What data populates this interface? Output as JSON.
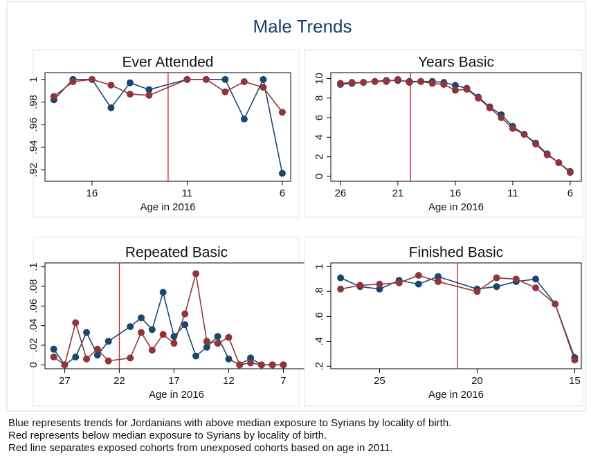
{
  "title": "Male Trends",
  "notes": [
    "Blue represents trends for Jordanians with above median exposure to Syrians by locality of birth.",
    "Red represents below median exposure to Syrians by locality of birth.",
    "Red line separates exposed cohorts from unexposed cohorts based on age in 2011."
  ],
  "chart_data": [
    {
      "type": "line",
      "title": "Ever Attended",
      "xlabel": "Age in 2016",
      "x": [
        18,
        17,
        16,
        15,
        14,
        13,
        11,
        10,
        9,
        8,
        7,
        6
      ],
      "series": [
        {
          "color": "#1a476f",
          "values": [
            0.982,
            1.0,
            1.0,
            0.975,
            0.997,
            0.991,
            1.0,
            1.0,
            1.0,
            0.965,
            1.0,
            0.917
          ]
        },
        {
          "color": "#90353b",
          "values": [
            0.985,
            0.998,
            1.0,
            0.995,
            0.987,
            0.986,
            1.0,
            1.0,
            0.989,
            0.998,
            0.993,
            0.971
          ]
        }
      ],
      "vline": {
        "value": 12,
        "color": "#c1272d"
      },
      "xlim": [
        18.47,
        5.56
      ],
      "xticks": [
        16,
        11,
        6
      ],
      "ylim": [
        0.91,
        1.006
      ],
      "yticks": [
        {
          "value": 0.92,
          "label": ".92"
        },
        {
          "value": 0.94,
          "label": ".94"
        },
        {
          "value": 0.96,
          "label": ".96"
        },
        {
          "value": 0.98,
          "label": ".98"
        },
        1
      ]
    },
    {
      "type": "line",
      "title": "Years Basic",
      "xlabel": "Age in 2016",
      "x": [
        26,
        25,
        24,
        23,
        22,
        21,
        20,
        19,
        18,
        17,
        16,
        15,
        14,
        13,
        12,
        11,
        10,
        9,
        8,
        7,
        6
      ],
      "series": [
        {
          "color": "#1a476f",
          "values": [
            9.4,
            9.5,
            9.6,
            9.7,
            9.8,
            9.8,
            9.7,
            9.7,
            9.7,
            9.6,
            9.3,
            9.0,
            8.1,
            7.1,
            6.3,
            5.1,
            4.3,
            3.4,
            2.3,
            1.4,
            0.5
          ]
        },
        {
          "color": "#90353b",
          "values": [
            9.5,
            9.6,
            9.6,
            9.7,
            9.7,
            9.9,
            9.6,
            9.7,
            9.5,
            9.4,
            8.8,
            8.9,
            8.0,
            7.0,
            6.0,
            4.9,
            4.3,
            3.3,
            2.2,
            1.4,
            0.4
          ]
        }
      ],
      "vline": {
        "value": 19.9,
        "color": "#c1272d"
      },
      "xlim": [
        26.84,
        5.03
      ],
      "xticks": [
        26,
        21,
        16,
        11,
        6
      ],
      "ylim": [
        -0.5,
        10.6
      ],
      "yticks": [
        0,
        2,
        4,
        6,
        8,
        10
      ]
    },
    {
      "type": "line",
      "title": "Repeated Basic",
      "xlabel": "Age in 2016",
      "x": [
        28,
        27,
        26,
        25,
        24,
        23,
        21,
        20,
        19,
        18,
        17,
        16,
        15,
        14,
        13,
        12,
        11,
        10,
        9,
        8,
        7
      ],
      "series": [
        {
          "color": "#1a476f",
          "values": [
            0.016,
            0,
            0.008,
            0.033,
            0.01,
            0.024,
            0.039,
            0.048,
            0.036,
            0.074,
            0.029,
            0.041,
            0.009,
            0.018,
            0.029,
            0.006,
            0,
            0.007,
            0,
            0,
            0
          ]
        },
        {
          "color": "#90353b",
          "values": [
            0.008,
            0,
            0.043,
            0.006,
            0.016,
            0.004,
            0.007,
            0.033,
            0.015,
            0.031,
            0.022,
            0.052,
            0.093,
            0.024,
            0.022,
            0.028,
            0,
            0.002,
            0,
            0,
            0
          ]
        }
      ],
      "vline": {
        "value": 22,
        "color": "#c1272d"
      },
      "xlim": [
        28.8,
        4.75
      ],
      "xticks": [
        27,
        22,
        17,
        12,
        7
      ],
      "ylim": [
        -0.004,
        0.104
      ],
      "yticks": [
        0,
        {
          "value": 0.02,
          "label": ".02"
        },
        {
          "value": 0.04,
          "label": ".04"
        },
        {
          "value": 0.06,
          "label": ".06"
        },
        {
          "value": 0.08,
          "label": ".08"
        },
        {
          "value": 0.1,
          "label": ".1"
        }
      ]
    },
    {
      "type": "line",
      "title": "Finished Basic",
      "xlabel": "Age in 2016",
      "x": [
        27,
        26,
        25,
        24,
        23,
        22,
        20,
        19,
        18,
        17,
        16,
        15
      ],
      "series": [
        {
          "color": "#1a476f",
          "values": [
            0.91,
            0.84,
            0.82,
            0.89,
            0.86,
            0.92,
            0.82,
            0.84,
            0.88,
            0.9,
            0.7,
            0.27
          ]
        },
        {
          "color": "#90353b",
          "values": [
            0.82,
            0.85,
            0.86,
            0.87,
            0.93,
            0.88,
            0.8,
            0.91,
            0.9,
            0.83,
            0.7,
            0.25
          ]
        }
      ],
      "vline": {
        "value": 21,
        "color": "#c1272d"
      },
      "xlim": [
        27.5,
        14.66
      ],
      "xticks": [
        25,
        20,
        15
      ],
      "ylim": [
        0.18,
        1.03
      ],
      "yticks": [
        {
          "value": 0.2,
          "label": ".2"
        },
        {
          "value": 0.4,
          "label": ".4"
        },
        {
          "value": 0.6,
          "label": ".6"
        },
        {
          "value": 0.8,
          "label": ".8"
        },
        1
      ]
    }
  ]
}
